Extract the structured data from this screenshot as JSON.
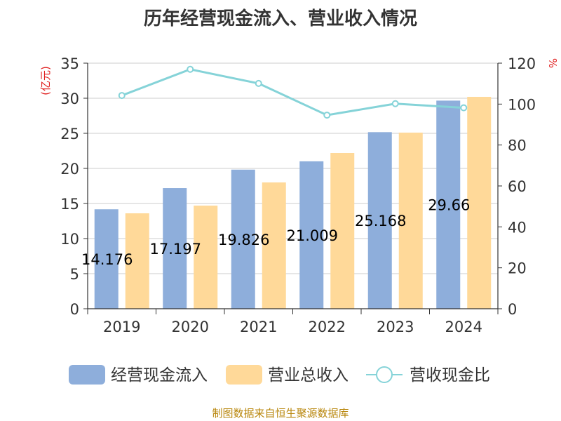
{
  "title": "历年经营现金流入、营业收入情况",
  "source": "制图数据来自恒生聚源数据库",
  "chart_data": {
    "type": "bar",
    "title": "历年经营现金流入、营业收入情况",
    "categories": [
      "2019",
      "2020",
      "2021",
      "2022",
      "2023",
      "2024"
    ],
    "ylabel_left": "(亿元)",
    "ylabel_right": "%",
    "ylim_left": [
      0,
      35
    ],
    "yticks_left": [
      "0",
      "5",
      "10",
      "15",
      "20",
      "25",
      "30",
      "35"
    ],
    "ylim_right": [
      0,
      120
    ],
    "yticks_right": [
      "0",
      "20",
      "40",
      "60",
      "80",
      "100",
      "120"
    ],
    "grid": true,
    "legend_position": "bottom",
    "series": [
      {
        "name": "经营现金流入",
        "kind": "bar",
        "axis": "left",
        "color": "#8eaedb",
        "values": [
          14.176,
          17.197,
          19.826,
          21.009,
          25.168,
          29.66
        ],
        "labels": [
          "14.176",
          "17.197",
          "19.826",
          "21.009",
          "25.168",
          "29.66"
        ]
      },
      {
        "name": "营业总收入",
        "kind": "bar",
        "axis": "left",
        "color": "#ffd999",
        "values": [
          13.6,
          14.7,
          18.0,
          22.2,
          25.1,
          30.2
        ]
      },
      {
        "name": "营收现金比",
        "kind": "line",
        "axis": "right",
        "color": "#85d3d8",
        "values": [
          104.2,
          117.0,
          110.1,
          94.6,
          100.2,
          98.2
        ]
      }
    ]
  }
}
